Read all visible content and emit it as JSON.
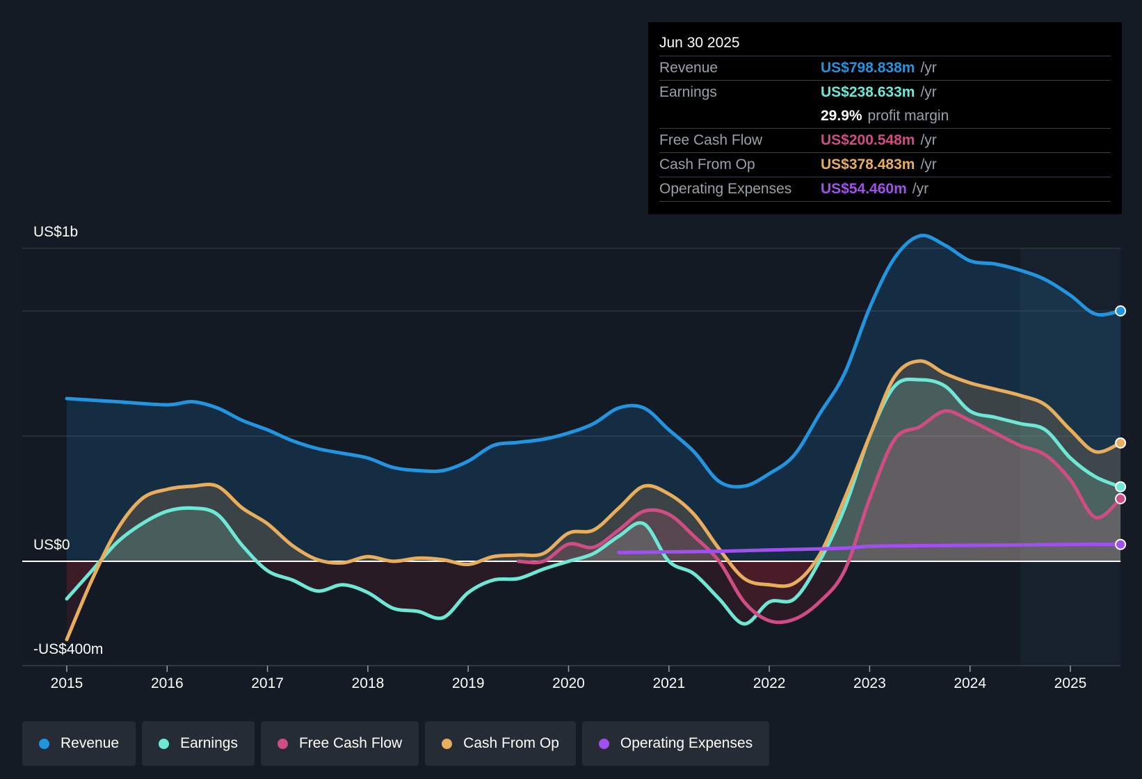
{
  "tooltip": {
    "date": "Jun 30 2025",
    "rows": [
      {
        "label": "Revenue",
        "value": "US$798.838m",
        "unit": "/yr",
        "color": "#2394df"
      },
      {
        "label": "Earnings",
        "value": "US$238.633m",
        "unit": "/yr",
        "color": "#6ee7d4"
      },
      {
        "margin_value": "29.9%",
        "margin_text": "profit margin"
      },
      {
        "label": "Free Cash Flow",
        "value": "US$200.548m",
        "unit": "/yr",
        "color": "#d04c84"
      },
      {
        "label": "Cash From Op",
        "value": "US$378.483m",
        "unit": "/yr",
        "color": "#e8ae5e"
      },
      {
        "label": "Operating Expenses",
        "value": "US$54.460m",
        "unit": "/yr",
        "color": "#a24ff0"
      }
    ]
  },
  "legend": [
    {
      "label": "Revenue",
      "color": "#2394df"
    },
    {
      "label": "Earnings",
      "color": "#6ee7d4"
    },
    {
      "label": "Free Cash Flow",
      "color": "#d04c84"
    },
    {
      "label": "Cash From Op",
      "color": "#e8ae5e"
    },
    {
      "label": "Operating Expenses",
      "color": "#a24ff0"
    }
  ],
  "chart_data": {
    "type": "area",
    "y_axis_labels": {
      "top": "US$1b",
      "zero": "US$0",
      "bottom": "-US$400m"
    },
    "ylim": [
      -400,
      1200
    ],
    "xlim": [
      2014.55,
      2025.5
    ],
    "forecast_start": 2024.5,
    "x_ticks": [
      "2015",
      "2016",
      "2017",
      "2018",
      "2019",
      "2020",
      "2021",
      "2022",
      "2023",
      "2024",
      "2025"
    ],
    "series": [
      {
        "name": "Revenue",
        "color": "#2394df",
        "x": [
          2015,
          2015.5,
          2016,
          2016.25,
          2016.5,
          2016.75,
          2017,
          2017.25,
          2017.5,
          2017.75,
          2018,
          2018.25,
          2018.5,
          2018.75,
          2019,
          2019.25,
          2019.5,
          2019.75,
          2020,
          2020.25,
          2020.5,
          2020.75,
          2021,
          2021.25,
          2021.5,
          2021.75,
          2022,
          2022.25,
          2022.5,
          2022.75,
          2023,
          2023.25,
          2023.5,
          2023.75,
          2024,
          2024.25,
          2024.5,
          2024.75,
          2025,
          2025.25,
          2025.5
        ],
        "values": [
          520,
          510,
          500,
          510,
          490,
          450,
          420,
          385,
          360,
          345,
          330,
          300,
          290,
          290,
          320,
          370,
          380,
          390,
          410,
          440,
          490,
          490,
          420,
          350,
          255,
          240,
          280,
          340,
          470,
          600,
          810,
          970,
          1040,
          1010,
          960,
          950,
          930,
          900,
          850,
          790,
          800
        ]
      },
      {
        "name": "Earnings",
        "color": "#6ee7d4",
        "x": [
          2015,
          2015.25,
          2015.5,
          2015.75,
          2016,
          2016.25,
          2016.5,
          2016.75,
          2017,
          2017.25,
          2017.5,
          2017.75,
          2018,
          2018.25,
          2018.5,
          2018.75,
          2019,
          2019.25,
          2019.5,
          2019.75,
          2020,
          2020.25,
          2020.5,
          2020.75,
          2021,
          2021.25,
          2021.5,
          2021.75,
          2022,
          2022.25,
          2022.5,
          2022.75,
          2023,
          2023.25,
          2023.5,
          2023.75,
          2024,
          2024.25,
          2024.5,
          2024.75,
          2025,
          2025.25,
          2025.5
        ],
        "values": [
          -120,
          -30,
          60,
          120,
          160,
          170,
          150,
          50,
          -30,
          -60,
          -95,
          -75,
          -100,
          -150,
          -160,
          -180,
          -100,
          -60,
          -55,
          -25,
          0,
          25,
          80,
          120,
          0,
          -40,
          -120,
          -200,
          -130,
          -120,
          0,
          170,
          400,
          560,
          580,
          560,
          480,
          460,
          440,
          420,
          330,
          270,
          238
        ]
      },
      {
        "name": "Free Cash Flow",
        "color": "#d04c84",
        "x": [
          2019.5,
          2019.75,
          2020,
          2020.25,
          2020.5,
          2020.75,
          2021,
          2021.25,
          2021.5,
          2021.75,
          2022,
          2022.25,
          2022.5,
          2022.75,
          2023,
          2023.25,
          2023.5,
          2023.75,
          2024,
          2024.25,
          2024.5,
          2024.75,
          2025,
          2025.25,
          2025.5
        ],
        "values": [
          0,
          0,
          55,
          45,
          100,
          160,
          150,
          80,
          0,
          -130,
          -190,
          -185,
          -130,
          -30,
          200,
          390,
          430,
          480,
          450,
          410,
          370,
          340,
          260,
          140,
          200
        ]
      },
      {
        "name": "Cash From Op",
        "color": "#e8ae5e",
        "x": [
          2015,
          2015.25,
          2015.5,
          2015.75,
          2016,
          2016.25,
          2016.5,
          2016.75,
          2017,
          2017.25,
          2017.5,
          2017.75,
          2018,
          2018.25,
          2018.5,
          2018.75,
          2019,
          2019.25,
          2019.5,
          2019.75,
          2020,
          2020.25,
          2020.5,
          2020.75,
          2021,
          2021.25,
          2021.5,
          2021.75,
          2022,
          2022.25,
          2022.5,
          2022.75,
          2023,
          2023.25,
          2023.5,
          2023.75,
          2024,
          2024.25,
          2024.5,
          2024.75,
          2025,
          2025.25,
          2025.5
        ],
        "values": [
          -250,
          -60,
          100,
          200,
          230,
          240,
          240,
          170,
          120,
          50,
          5,
          -5,
          15,
          0,
          10,
          5,
          -10,
          15,
          20,
          25,
          90,
          100,
          170,
          240,
          215,
          150,
          40,
          -55,
          -75,
          -70,
          20,
          200,
          400,
          590,
          640,
          600,
          570,
          550,
          530,
          500,
          420,
          350,
          378
        ]
      },
      {
        "name": "Operating Expenses",
        "color": "#a24ff0",
        "x": [
          2020.5,
          2021,
          2021.5,
          2022,
          2022.25,
          2022.75,
          2023,
          2023.5,
          2024,
          2024.5,
          2025,
          2025.5
        ],
        "values": [
          28,
          30,
          32,
          36,
          38,
          42,
          48,
          50,
          51,
          52,
          54,
          54
        ]
      }
    ]
  }
}
